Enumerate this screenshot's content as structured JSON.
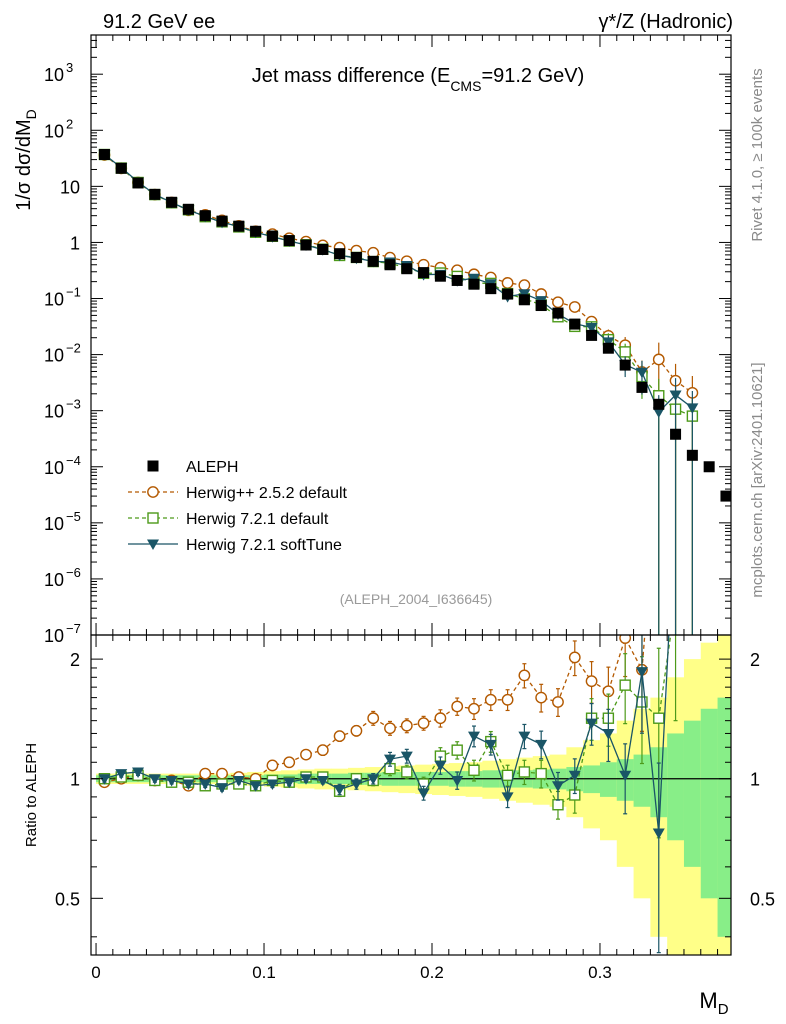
{
  "header": {
    "left": "91.2 GeV ee",
    "right": "γ*/Z (Hadronic)"
  },
  "side_labels": {
    "rivet": "Rivet 4.1.0, ≥ 100k events",
    "mcplots": "mcplots.cern.ch [arXiv:2401.10621]"
  },
  "chart_data": {
    "type": "scatter",
    "title_main": "Jet mass difference (E",
    "title_sub": "CMS",
    "title_tail": "=91.2 GeV)",
    "analysis_tag": "(ALEPH_2004_I636645)",
    "xlabel_main": "M",
    "xlabel_sub": "D",
    "ylabel_main": "1/σ  dσ/dM",
    "ylabel_sub": "D",
    "ratio_ylabel": "Ratio to ALEPH",
    "xlim": [
      -0.003,
      0.378
    ],
    "ylim_log": [
      1e-07,
      5000
    ],
    "ratio_ylim": [
      0.36,
      2.3
    ],
    "x_ticks": [
      {
        "v": 0,
        "label": "0"
      },
      {
        "v": 0.1,
        "label": "0.1"
      },
      {
        "v": 0.2,
        "label": "0.2"
      },
      {
        "v": 0.3,
        "label": "0.3"
      }
    ],
    "y_ticks": [
      {
        "exp": 3,
        "label": "10",
        "sup": "3"
      },
      {
        "exp": 2,
        "label": "10",
        "sup": "2"
      },
      {
        "exp": 1,
        "label": "10",
        "sup": ""
      },
      {
        "exp": 0,
        "label": "1",
        "sup": ""
      },
      {
        "exp": -1,
        "label": "10",
        "sup": "−1"
      },
      {
        "exp": -2,
        "label": "10",
        "sup": "−2"
      },
      {
        "exp": -3,
        "label": "10",
        "sup": "−3"
      },
      {
        "exp": -4,
        "label": "10",
        "sup": "−4"
      },
      {
        "exp": -5,
        "label": "10",
        "sup": "−5"
      },
      {
        "exp": -6,
        "label": "10",
        "sup": "−6"
      },
      {
        "exp": -7,
        "label": "10",
        "sup": "−7"
      }
    ],
    "ratio_ticks": [
      {
        "v": 2,
        "label": "2"
      },
      {
        "v": 1,
        "label": "1"
      },
      {
        "v": 0.5,
        "label": "0.5"
      }
    ],
    "legend": [
      {
        "name": "ALEPH",
        "color": "#000000",
        "marker": "square"
      },
      {
        "name": "Herwig++ 2.5.2 default",
        "color": "#b35900",
        "marker": "circle"
      },
      {
        "name": "Herwig 7.2.1 default",
        "color": "#4d9a1a",
        "marker": "open-square"
      },
      {
        "name": "Herwig 7.2.1 softTune",
        "color": "#1a5566",
        "marker": "triangle"
      }
    ],
    "x": [
      0.005,
      0.015,
      0.025,
      0.035,
      0.045,
      0.055,
      0.065,
      0.075,
      0.085,
      0.095,
      0.105,
      0.115,
      0.125,
      0.135,
      0.145,
      0.155,
      0.165,
      0.175,
      0.185,
      0.195,
      0.205,
      0.215,
      0.225,
      0.235,
      0.245,
      0.255,
      0.265,
      0.275,
      0.285,
      0.295,
      0.305,
      0.315,
      0.325,
      0.335,
      0.345,
      0.355,
      0.365,
      0.375
    ],
    "data": [
      37,
      21,
      11.5,
      7.2,
      5.2,
      3.9,
      3.0,
      2.4,
      1.95,
      1.58,
      1.3,
      1.08,
      0.9,
      0.75,
      0.63,
      0.54,
      0.46,
      0.4,
      0.34,
      0.29,
      0.25,
      0.21,
      0.18,
      0.15,
      0.12,
      0.095,
      0.075,
      0.055,
      0.035,
      0.022,
      0.013,
      0.0065,
      0.0026,
      0.0013,
      0.00038,
      0.00016,
      0.0001,
      3e-05
    ],
    "band_inner": [
      0.02,
      0.02,
      0.02,
      0.02,
      0.02,
      0.02,
      0.02,
      0.02,
      0.02,
      0.02,
      0.025,
      0.025,
      0.03,
      0.03,
      0.03,
      0.035,
      0.035,
      0.04,
      0.04,
      0.04,
      0.04,
      0.045,
      0.045,
      0.05,
      0.05,
      0.05,
      0.055,
      0.06,
      0.07,
      0.08,
      0.1,
      0.12,
      0.15,
      0.2,
      0.3,
      0.4,
      0.5,
      0.6
    ],
    "band_outer": [
      0.03,
      0.03,
      0.03,
      0.03,
      0.03,
      0.03,
      0.03,
      0.03,
      0.035,
      0.04,
      0.045,
      0.05,
      0.055,
      0.06,
      0.06,
      0.065,
      0.07,
      0.075,
      0.08,
      0.085,
      0.09,
      0.095,
      0.1,
      0.11,
      0.12,
      0.13,
      0.14,
      0.15,
      0.2,
      0.25,
      0.3,
      0.4,
      0.5,
      0.6,
      0.8,
      1.0,
      1.2,
      1.4
    ],
    "series": [
      {
        "name": "Herwig++ 2.5.2 default",
        "ratio": [
          0.98,
          1.0,
          1.02,
          0.99,
          0.99,
          0.96,
          1.03,
          1.03,
          1.01,
          1.0,
          1.08,
          1.1,
          1.15,
          1.18,
          1.28,
          1.32,
          1.42,
          1.34,
          1.36,
          1.38,
          1.42,
          1.52,
          1.5,
          1.58,
          1.58,
          1.82,
          1.6,
          1.56,
          2.02,
          1.76,
          1.66,
          2.26,
          1.88,
          6.3,
          9.0,
          13.0,
          null,
          null
        ],
        "ratio_err": [
          0.02,
          0.02,
          0.02,
          0.02,
          0.02,
          0.02,
          0.02,
          0.02,
          0.02,
          0.02,
          0.02,
          0.02,
          0.02,
          0.03,
          0.03,
          0.03,
          0.04,
          0.04,
          0.04,
          0.04,
          0.05,
          0.05,
          0.06,
          0.06,
          0.06,
          0.07,
          0.08,
          0.08,
          0.1,
          0.12,
          0.15,
          0.2,
          0.3,
          0.5,
          0.5,
          0.5,
          null,
          null
        ]
      },
      {
        "name": "Herwig 7.2.1 default",
        "ratio": [
          1.0,
          1.01,
          1.02,
          0.99,
          0.98,
          0.98,
          0.96,
          0.97,
          0.97,
          0.96,
          0.99,
          0.98,
          1.01,
          1.01,
          0.93,
          1.0,
          0.99,
          1.06,
          1.04,
          0.97,
          1.14,
          1.18,
          1.05,
          1.24,
          1.02,
          1.04,
          1.03,
          0.86,
          0.91,
          1.42,
          1.42,
          1.72,
          1.56,
          1.42,
          2.8,
          5.0,
          null,
          null
        ],
        "ratio_err": [
          0.02,
          0.02,
          0.02,
          0.02,
          0.02,
          0.02,
          0.02,
          0.02,
          0.02,
          0.02,
          0.02,
          0.02,
          0.02,
          0.02,
          0.03,
          0.03,
          0.03,
          0.04,
          0.04,
          0.04,
          0.05,
          0.05,
          0.06,
          0.06,
          0.06,
          0.07,
          0.08,
          0.08,
          0.1,
          0.12,
          0.15,
          0.2,
          0.3,
          0.5,
          0.5,
          0.5,
          null,
          null
        ]
      },
      {
        "name": "Herwig 7.2.1 softTune",
        "ratio": [
          1.0,
          1.03,
          1.04,
          1.0,
          0.99,
          0.97,
          0.97,
          0.95,
          0.99,
          0.96,
          0.97,
          0.98,
          1.0,
          0.99,
          0.94,
          0.97,
          1.0,
          1.12,
          1.14,
          0.92,
          1.08,
          0.99,
          1.28,
          1.22,
          0.9,
          1.28,
          1.22,
          0.96,
          1.02,
          1.38,
          1.3,
          1.02,
          1.86,
          0.73,
          5.0,
          7.0,
          null,
          null
        ],
        "ratio_err": [
          0.02,
          0.02,
          0.02,
          0.02,
          0.02,
          0.02,
          0.02,
          0.02,
          0.02,
          0.02,
          0.02,
          0.02,
          0.02,
          0.02,
          0.03,
          0.03,
          0.03,
          0.04,
          0.04,
          0.04,
          0.05,
          0.05,
          0.06,
          0.06,
          0.06,
          0.07,
          0.08,
          0.08,
          0.1,
          0.12,
          0.15,
          0.2,
          0.3,
          0.5,
          0.5,
          0.5,
          null,
          null
        ]
      }
    ]
  }
}
